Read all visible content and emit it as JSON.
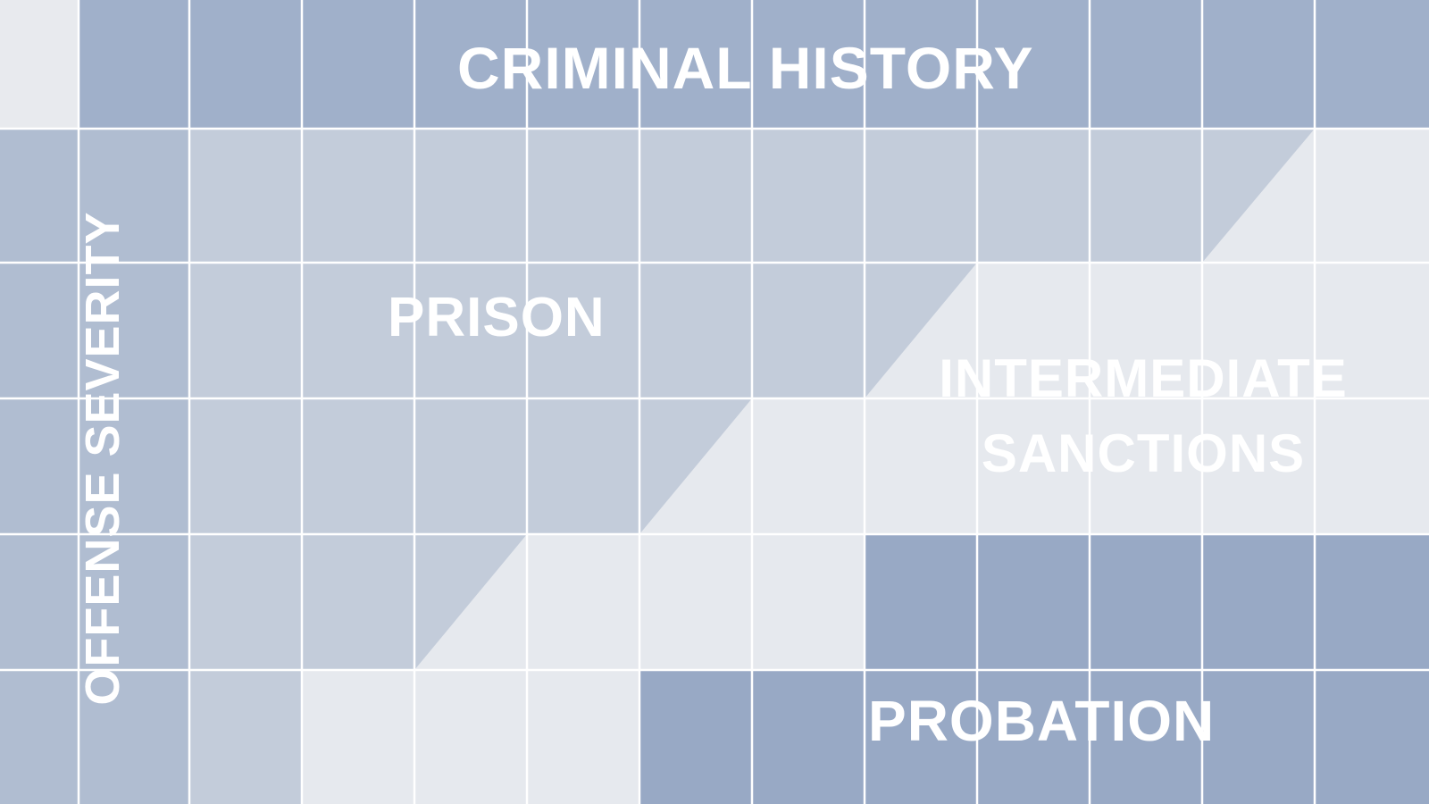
{
  "headers": {
    "column": "CRIMINAL HISTORY",
    "row": "OFFENSE SEVERITY"
  },
  "zones": {
    "prison": "PRISON",
    "intermediate_line1": "INTERMEDIATE",
    "intermediate_line2": "SANCTIONS",
    "probation": "PROBATION"
  },
  "colors": {
    "header": "#A0B0CA",
    "prison": "#C3CCDA",
    "intermediate": "#E6E9EE",
    "probation": "#98A9C5",
    "severity_column": "#B0BDD1",
    "corner": "#E8EAEE",
    "grid_line": "#FFFFFF"
  }
}
